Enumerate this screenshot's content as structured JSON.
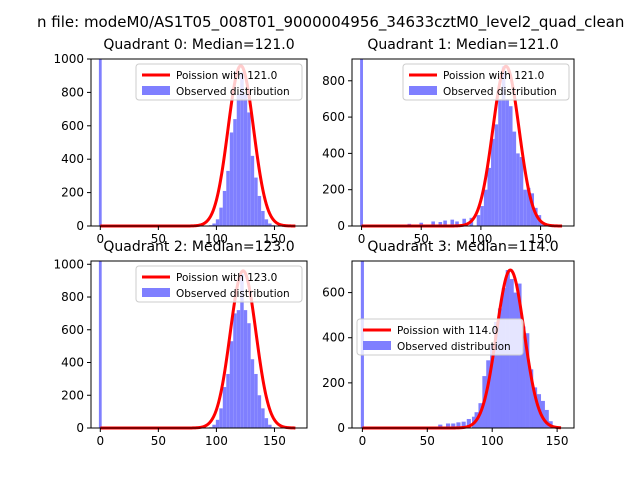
{
  "figure": {
    "suptitle": "n file: modeM0/AS1T05_008T01_9000004956_34633cztM0_level2_quad_clean"
  },
  "colors": {
    "hist": "#7f7fff",
    "fit": "#ff0000",
    "axis": "#000000",
    "background": "#ffffff"
  },
  "chart_data": [
    {
      "type": "bar",
      "title": "Quadrant 0: Median=121.0",
      "xlim": [
        -8,
        178
      ],
      "ylim": [
        0,
        1000
      ],
      "xticks": [
        0,
        50,
        100,
        150
      ],
      "yticks": [
        0,
        200,
        400,
        600,
        800,
        1000
      ],
      "legend_position": "top-right",
      "legend": [
        "Poission with 121.0",
        "Observed distribution"
      ],
      "spike": {
        "x": 0,
        "value": 1000
      },
      "poisson_mean": 121,
      "poisson_peak": 960,
      "hist_x": [
        95,
        98,
        101,
        104,
        107,
        110,
        113,
        116,
        119,
        122,
        125,
        128,
        131,
        134,
        137,
        140,
        143,
        146,
        149
      ],
      "hist_values": [
        5,
        15,
        40,
        110,
        210,
        330,
        560,
        640,
        790,
        920,
        790,
        680,
        420,
        290,
        180,
        90,
        40,
        15,
        5
      ]
    },
    {
      "type": "bar",
      "title": "Quadrant 1: Median=121.0",
      "xlim": [
        -8,
        178
      ],
      "ylim": [
        0,
        920
      ],
      "xticks": [
        0,
        50,
        100,
        150
      ],
      "yticks": [
        0,
        200,
        400,
        600,
        800
      ],
      "legend_position": "top-right",
      "legend": [
        "Poission with 121.0",
        "Observed distribution"
      ],
      "spike": {
        "x": 0,
        "value": 920
      },
      "poisson_mean": 121,
      "poisson_peak": 880,
      "hist_x": [
        30,
        40,
        50,
        60,
        66,
        70,
        76,
        80,
        86,
        92,
        98,
        101,
        104,
        107,
        110,
        113,
        116,
        119,
        122,
        125,
        128,
        131,
        134,
        137,
        140,
        143,
        146,
        149,
        152
      ],
      "hist_values": [
        8,
        12,
        18,
        25,
        22,
        30,
        35,
        25,
        40,
        45,
        60,
        110,
        200,
        320,
        480,
        560,
        700,
        880,
        700,
        660,
        520,
        400,
        380,
        200,
        210,
        180,
        100,
        60,
        20
      ]
    },
    {
      "type": "bar",
      "title": "Quadrant 2: Median=123.0",
      "xlim": [
        -8,
        178
      ],
      "ylim": [
        0,
        1020
      ],
      "xticks": [
        0,
        50,
        100,
        150
      ],
      "yticks": [
        0,
        200,
        400,
        600,
        800,
        1000
      ],
      "legend_position": "top-right",
      "legend": [
        "Poission with 123.0",
        "Observed distribution"
      ],
      "spike": {
        "x": 0,
        "value": 1020
      },
      "poisson_mean": 123,
      "poisson_peak": 960,
      "hist_x": [
        95,
        98,
        101,
        104,
        107,
        110,
        113,
        116,
        119,
        122,
        125,
        128,
        131,
        134,
        137,
        140,
        143,
        146,
        149
      ],
      "hist_values": [
        5,
        20,
        50,
        120,
        250,
        330,
        530,
        700,
        720,
        940,
        720,
        640,
        420,
        330,
        200,
        120,
        60,
        20,
        5
      ]
    },
    {
      "type": "bar",
      "title": "Quadrant 3: Median=114.0",
      "xlim": [
        -8,
        163
      ],
      "ylim": [
        0,
        740
      ],
      "xticks": [
        0,
        50,
        100,
        150
      ],
      "yticks": [
        0,
        200,
        400,
        600
      ],
      "legend_position": "center-left",
      "legend": [
        "Poission with 114.0",
        "Observed distribution"
      ],
      "spike": {
        "x": 0,
        "value": 740
      },
      "poisson_mean": 114,
      "poisson_peak": 700,
      "hist_x": [
        60,
        66,
        70,
        74,
        78,
        82,
        86,
        88,
        91,
        94,
        97,
        100,
        103,
        106,
        109,
        112,
        115,
        118,
        121,
        124,
        127,
        130,
        133,
        136,
        139,
        142,
        145
      ],
      "hist_values": [
        15,
        20,
        20,
        25,
        28,
        40,
        50,
        70,
        110,
        230,
        300,
        370,
        470,
        530,
        620,
        700,
        660,
        600,
        640,
        450,
        420,
        260,
        180,
        150,
        120,
        80,
        30
      ]
    }
  ]
}
